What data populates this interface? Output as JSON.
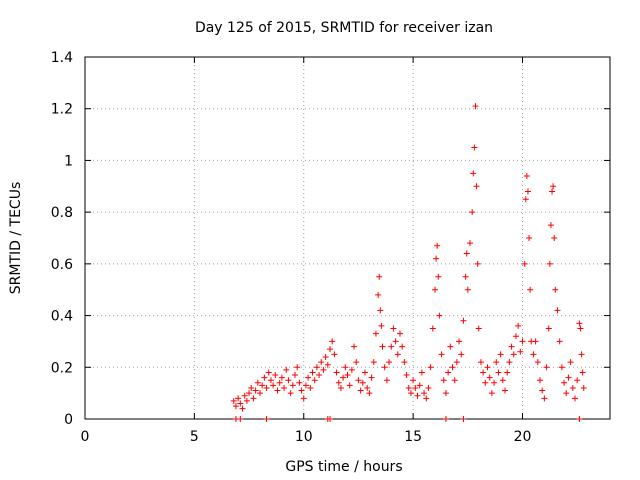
{
  "chart_data": {
    "type": "scatter",
    "title": "Day 125 of 2015, SRMTID for receiver izan",
    "xlabel": "GPS time / hours",
    "ylabel": "SRMTID / TECUs",
    "xlim": [
      0,
      24
    ],
    "ylim": [
      0,
      1.4
    ],
    "xticks": [
      0,
      5,
      10,
      15,
      20
    ],
    "xtick_labels": [
      "0",
      "5",
      "10",
      "15",
      "20"
    ],
    "yticks": [
      0,
      0.2,
      0.4,
      0.6,
      0.8,
      1.0,
      1.2,
      1.4
    ],
    "ytick_labels": [
      "0",
      "0.2",
      "0.4",
      "0.6",
      "0.8",
      "1",
      "1.2",
      "1.4"
    ],
    "grid": true,
    "marker": "plus",
    "color": "#ff0000",
    "series": [
      {
        "name": "SRMTID",
        "points": [
          [
            6.8,
            0.07
          ],
          [
            6.9,
            0.05
          ],
          [
            7.0,
            0.08
          ],
          [
            7.1,
            0.06
          ],
          [
            7.2,
            0.04
          ],
          [
            7.3,
            0.09
          ],
          [
            7.4,
            0.07
          ],
          [
            7.5,
            0.1
          ],
          [
            7.6,
            0.12
          ],
          [
            7.7,
            0.08
          ],
          [
            7.8,
            0.11
          ],
          [
            7.9,
            0.14
          ],
          [
            8.0,
            0.1
          ],
          [
            8.1,
            0.13
          ],
          [
            8.2,
            0.16
          ],
          [
            8.3,
            0.12
          ],
          [
            8.4,
            0.18
          ],
          [
            8.5,
            0.15
          ],
          [
            8.6,
            0.13
          ],
          [
            8.7,
            0.17
          ],
          [
            8.8,
            0.11
          ],
          [
            8.9,
            0.14
          ],
          [
            9.0,
            0.16
          ],
          [
            9.1,
            0.12
          ],
          [
            9.2,
            0.19
          ],
          [
            9.3,
            0.15
          ],
          [
            9.4,
            0.1
          ],
          [
            9.5,
            0.13
          ],
          [
            9.6,
            0.17
          ],
          [
            9.7,
            0.2
          ],
          [
            9.8,
            0.14
          ],
          [
            9.9,
            0.11
          ],
          [
            10.0,
            0.08
          ],
          [
            10.1,
            0.13
          ],
          [
            10.2,
            0.16
          ],
          [
            10.3,
            0.12
          ],
          [
            10.4,
            0.18
          ],
          [
            10.5,
            0.15
          ],
          [
            10.6,
            0.2
          ],
          [
            10.7,
            0.17
          ],
          [
            10.8,
            0.22
          ],
          [
            10.9,
            0.19
          ],
          [
            11.0,
            0.24
          ],
          [
            11.1,
            0.21
          ],
          [
            11.2,
            0.27
          ],
          [
            11.3,
            0.3
          ],
          [
            11.4,
            0.25
          ],
          [
            11.5,
            0.18
          ],
          [
            11.6,
            0.14
          ],
          [
            11.7,
            0.12
          ],
          [
            11.8,
            0.16
          ],
          [
            11.9,
            0.2
          ],
          [
            12.0,
            0.17
          ],
          [
            12.1,
            0.13
          ],
          [
            12.2,
            0.19
          ],
          [
            12.3,
            0.28
          ],
          [
            12.4,
            0.22
          ],
          [
            12.5,
            0.15
          ],
          [
            12.6,
            0.11
          ],
          [
            12.7,
            0.14
          ],
          [
            12.8,
            0.18
          ],
          [
            12.9,
            0.12
          ],
          [
            13.0,
            0.1
          ],
          [
            13.1,
            0.16
          ],
          [
            13.2,
            0.22
          ],
          [
            13.3,
            0.33
          ],
          [
            13.4,
            0.48
          ],
          [
            13.45,
            0.55
          ],
          [
            13.5,
            0.42
          ],
          [
            13.55,
            0.36
          ],
          [
            13.6,
            0.28
          ],
          [
            13.7,
            0.2
          ],
          [
            13.8,
            0.15
          ],
          [
            13.9,
            0.22
          ],
          [
            14.0,
            0.28
          ],
          [
            14.1,
            0.35
          ],
          [
            14.2,
            0.3
          ],
          [
            14.3,
            0.25
          ],
          [
            14.4,
            0.33
          ],
          [
            14.5,
            0.28
          ],
          [
            14.6,
            0.22
          ],
          [
            14.7,
            0.17
          ],
          [
            14.8,
            0.12
          ],
          [
            14.9,
            0.1
          ],
          [
            15.0,
            0.15
          ],
          [
            15.1,
            0.12
          ],
          [
            15.2,
            0.09
          ],
          [
            15.3,
            0.13
          ],
          [
            15.4,
            0.18
          ],
          [
            15.5,
            0.1
          ],
          [
            15.6,
            0.08
          ],
          [
            15.7,
            0.12
          ],
          [
            15.8,
            0.2
          ],
          [
            15.9,
            0.35
          ],
          [
            16.0,
            0.5
          ],
          [
            16.05,
            0.62
          ],
          [
            16.1,
            0.67
          ],
          [
            16.15,
            0.55
          ],
          [
            16.2,
            0.4
          ],
          [
            16.3,
            0.25
          ],
          [
            16.4,
            0.15
          ],
          [
            16.5,
            0.1
          ],
          [
            16.6,
            0.18
          ],
          [
            16.7,
            0.28
          ],
          [
            16.8,
            0.2
          ],
          [
            16.9,
            0.15
          ],
          [
            17.0,
            0.22
          ],
          [
            17.1,
            0.3
          ],
          [
            17.2,
            0.25
          ],
          [
            17.3,
            0.38
          ],
          [
            17.4,
            0.55
          ],
          [
            17.45,
            0.64
          ],
          [
            17.5,
            0.5
          ],
          [
            17.6,
            0.68
          ],
          [
            17.7,
            0.8
          ],
          [
            17.75,
            0.95
          ],
          [
            17.8,
            1.05
          ],
          [
            17.85,
            1.21
          ],
          [
            17.9,
            0.9
          ],
          [
            17.95,
            0.6
          ],
          [
            18.0,
            0.35
          ],
          [
            18.1,
            0.22
          ],
          [
            18.2,
            0.18
          ],
          [
            18.3,
            0.14
          ],
          [
            18.4,
            0.2
          ],
          [
            18.5,
            0.16
          ],
          [
            18.6,
            0.1
          ],
          [
            18.7,
            0.14
          ],
          [
            18.8,
            0.22
          ],
          [
            18.9,
            0.18
          ],
          [
            19.0,
            0.25
          ],
          [
            19.1,
            0.15
          ],
          [
            19.2,
            0.11
          ],
          [
            19.3,
            0.18
          ],
          [
            19.4,
            0.22
          ],
          [
            19.5,
            0.28
          ],
          [
            19.6,
            0.25
          ],
          [
            19.7,
            0.32
          ],
          [
            19.8,
            0.36
          ],
          [
            19.9,
            0.26
          ],
          [
            20.0,
            0.3
          ],
          [
            20.1,
            0.6
          ],
          [
            20.15,
            0.85
          ],
          [
            20.2,
            0.94
          ],
          [
            20.25,
            0.88
          ],
          [
            20.3,
            0.7
          ],
          [
            20.35,
            0.5
          ],
          [
            20.4,
            0.3
          ],
          [
            20.5,
            0.25
          ],
          [
            20.6,
            0.3
          ],
          [
            20.7,
            0.22
          ],
          [
            20.8,
            0.15
          ],
          [
            20.9,
            0.11
          ],
          [
            21.0,
            0.08
          ],
          [
            21.1,
            0.2
          ],
          [
            21.2,
            0.35
          ],
          [
            21.25,
            0.6
          ],
          [
            21.3,
            0.75
          ],
          [
            21.35,
            0.88
          ],
          [
            21.4,
            0.9
          ],
          [
            21.45,
            0.7
          ],
          [
            21.5,
            0.5
          ],
          [
            21.6,
            0.42
          ],
          [
            21.7,
            0.3
          ],
          [
            21.8,
            0.2
          ],
          [
            21.9,
            0.14
          ],
          [
            22.0,
            0.1
          ],
          [
            22.1,
            0.16
          ],
          [
            22.2,
            0.22
          ],
          [
            22.3,
            0.12
          ],
          [
            22.4,
            0.08
          ],
          [
            22.5,
            0.15
          ],
          [
            22.6,
            0.37
          ],
          [
            22.65,
            0.35
          ],
          [
            22.7,
            0.25
          ],
          [
            22.75,
            0.18
          ],
          [
            22.8,
            0.12
          ],
          [
            6.9,
            0.0
          ],
          [
            7.1,
            0.0
          ],
          [
            8.3,
            0.0
          ],
          [
            11.1,
            0.0
          ],
          [
            11.2,
            0.0
          ],
          [
            16.5,
            0.0
          ],
          [
            17.3,
            0.0
          ],
          [
            22.6,
            0.0
          ]
        ]
      }
    ]
  }
}
